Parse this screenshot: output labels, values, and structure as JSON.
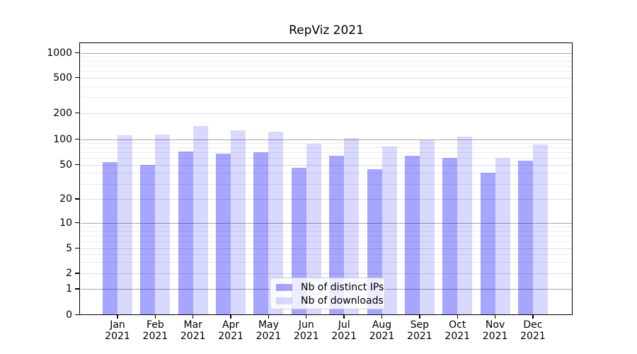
{
  "title": "RepViz 2021",
  "chart_data": {
    "type": "bar",
    "title": "RepViz 2021",
    "categories": [
      "Jan 2021",
      "Feb 2021",
      "Mar 2021",
      "Apr 2021",
      "May 2021",
      "Jun 2021",
      "Jul 2021",
      "Aug 2021",
      "Sep 2021",
      "Oct 2021",
      "Nov 2021",
      "Dec 2021"
    ],
    "series": [
      {
        "name": "Nb of distinct IPs",
        "color": "rgba(0,0,255,0.35)",
        "values": [
          54,
          50,
          71,
          67,
          70,
          46,
          64,
          44,
          63,
          60,
          40,
          56
        ]
      },
      {
        "name": "Nb of downloads",
        "color": "rgba(0,0,255,0.15)",
        "values": [
          111,
          114,
          142,
          126,
          122,
          88,
          103,
          82,
          98,
          106,
          60,
          86
        ]
      }
    ],
    "xlabel": "",
    "ylabel": "",
    "yscale": "symlog",
    "yticks": [
      0,
      1,
      2,
      5,
      10,
      20,
      50,
      100,
      200,
      500,
      1000
    ],
    "ylim": [
      0,
      1400
    ],
    "grid": "both",
    "legend_position": "lower-center"
  }
}
